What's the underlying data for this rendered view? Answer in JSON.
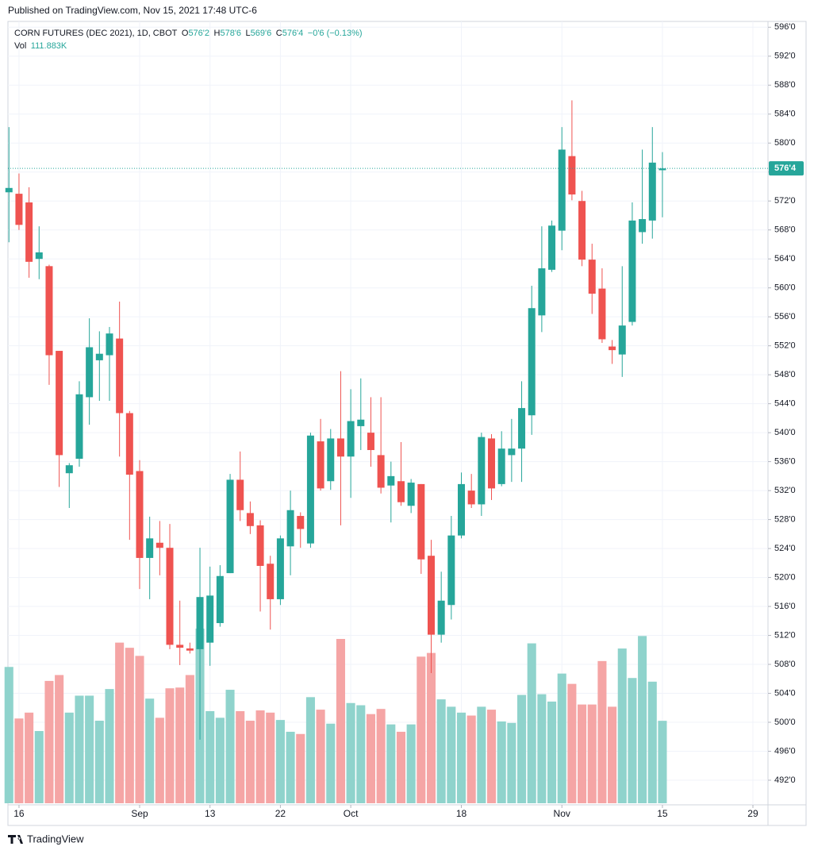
{
  "published": "Published on TradingView.com, Nov 15, 2021 17:48 UTC-6",
  "brand": "TradingView",
  "chart_data": {
    "type": "candlestick",
    "title": "CORN FUTURES (DEC 2021), 1D, CBOT",
    "ohlc_legend": [
      {
        "key": "O",
        "value": "576'2"
      },
      {
        "key": "H",
        "value": "578'6"
      },
      {
        "key": "L",
        "value": "569'6"
      },
      {
        "key": "C",
        "value": "576'4"
      }
    ],
    "change": "−0'6 (−0.13%)",
    "volume_name": "Vol",
    "volume_label": "111.883K",
    "up_color": "#26a69a",
    "down_color": "#ef5350",
    "up_volume_color": "#8fd3cc",
    "down_volume_color": "#f5a5a5",
    "open": [
      573.2,
      573.0,
      571.8,
      564.0,
      563.0,
      551.3,
      534.4,
      536.4,
      544.9,
      550.0,
      550.7,
      553.0,
      542.7,
      534.7,
      522.7,
      524.8,
      524.1,
      510.7,
      510.2,
      510.1,
      511.0,
      513.7,
      520.6,
      533.5,
      528.9,
      527.2,
      521.9,
      517.0,
      524.3,
      528.5,
      524.7,
      538.8,
      533.3,
      539.2,
      536.7,
      540.9,
      540.0,
      536.9,
      532.7,
      533.3,
      529.9,
      532.9,
      523.0,
      512.1,
      516.2,
      525.8,
      532.0,
      530.1,
      539.2,
      532.9,
      536.9,
      537.8,
      542.4,
      556.2,
      562.5,
      567.9,
      578.2,
      572.0,
      563.9,
      559.9,
      551.9,
      550.8,
      555.3,
      567.7,
      569.3,
      576.25
    ],
    "high": [
      582.2,
      575.8,
      573.9,
      568.5,
      563.2,
      551.3,
      535.8,
      547.1,
      555.8,
      554.0,
      554.6,
      558.1,
      543.0,
      536.2,
      528.4,
      527.8,
      527.4,
      516.8,
      511.0,
      524.1,
      521.5,
      521.7,
      534.3,
      537.4,
      530.5,
      527.9,
      523.0,
      525.8,
      532.0,
      529.0,
      540.0,
      541.9,
      540.5,
      548.5,
      546.0,
      547.5,
      544.9,
      544.9,
      536.0,
      538.7,
      533.6,
      532.9,
      525.2,
      520.8,
      528.5,
      534.5,
      534.3,
      540.0,
      539.8,
      540.2,
      541.9,
      547.1,
      560.3,
      568.5,
      569.3,
      582.2,
      585.9,
      573.4,
      566.1,
      562.7,
      552.8,
      563.0,
      571.8,
      579.1,
      582.2,
      578.75
    ],
    "low": [
      566.3,
      568.0,
      561.4,
      561.2,
      546.6,
      532.5,
      529.6,
      535.3,
      541.1,
      544.4,
      544.4,
      536.7,
      525.2,
      518.4,
      517.0,
      520.3,
      510.1,
      507.9,
      509.5,
      497.6,
      507.8,
      513.2,
      520.6,
      527.8,
      526.0,
      515.3,
      512.8,
      516.2,
      520.3,
      524.1,
      524.1,
      532.0,
      532.1,
      527.2,
      531.0,
      537.6,
      535.3,
      531.6,
      527.6,
      529.9,
      528.9,
      520.5,
      506.8,
      511.0,
      514.2,
      525.4,
      529.6,
      528.5,
      530.7,
      532.6,
      533.2,
      533.2,
      539.7,
      553.9,
      562.2,
      565.2,
      572.1,
      563.0,
      556.4,
      552.4,
      549.5,
      547.7,
      554.8,
      566.1,
      566.8,
      569.75
    ],
    "close": [
      573.8,
      568.7,
      563.6,
      564.9,
      550.7,
      536.9,
      535.5,
      545.3,
      551.8,
      550.9,
      553.7,
      542.7,
      534.2,
      522.7,
      525.4,
      524.1,
      510.7,
      510.3,
      509.9,
      517.3,
      517.5,
      520.2,
      533.5,
      529.3,
      527.1,
      521.6,
      517.0,
      525.4,
      529.3,
      526.7,
      539.6,
      532.3,
      539.2,
      536.7,
      541.6,
      541.8,
      537.6,
      532.4,
      534.0,
      530.4,
      533.1,
      522.5,
      512.1,
      516.8,
      525.8,
      532.9,
      530.1,
      539.4,
      532.3,
      537.8,
      537.8,
      543.4,
      557.2,
      562.7,
      568.6,
      579.1,
      572.9,
      563.9,
      559.2,
      552.9,
      551.4,
      554.8,
      569.3,
      569.5,
      577.3,
      576.5
    ],
    "volume": [
      185,
      115,
      123,
      98,
      166,
      174,
      123,
      146,
      146,
      112,
      155,
      218,
      211,
      200,
      142,
      116,
      156,
      157,
      174,
      237,
      125,
      116,
      154,
      125,
      112,
      126,
      123,
      113,
      97,
      94,
      144,
      127,
      108,
      223,
      136,
      133,
      121,
      128,
      107,
      97,
      107,
      199,
      204,
      141,
      131,
      123,
      119,
      131,
      127,
      111,
      109,
      147,
      217,
      148,
      138,
      176,
      162,
      134,
      134,
      193,
      131,
      210,
      170,
      227,
      165,
      111.883
    ],
    "xlim": [
      -0.1,
      75.5
    ],
    "xticks": [
      {
        "value": 1,
        "label": "16"
      },
      {
        "value": 13,
        "label": "Sep"
      },
      {
        "value": 20,
        "label": "13"
      },
      {
        "value": 27,
        "label": "22"
      },
      {
        "value": 34,
        "label": "Oct"
      },
      {
        "value": 45,
        "label": "18"
      },
      {
        "value": 55,
        "label": "Nov"
      },
      {
        "value": 65,
        "label": "15"
      },
      {
        "value": 74,
        "label": "29"
      }
    ],
    "ylim": [
      488.6,
      596.8
    ],
    "yticks": [
      {
        "value": 596,
        "label": "596'0"
      },
      {
        "value": 592,
        "label": "592'0"
      },
      {
        "value": 588,
        "label": "588'0"
      },
      {
        "value": 584,
        "label": "584'0"
      },
      {
        "value": 580,
        "label": "580'0"
      },
      {
        "value": 576,
        "label": "576'0"
      },
      {
        "value": 572,
        "label": "572'0"
      },
      {
        "value": 568,
        "label": "568'0"
      },
      {
        "value": 564,
        "label": "564'0"
      },
      {
        "value": 560,
        "label": "560'0"
      },
      {
        "value": 556,
        "label": "556'0"
      },
      {
        "value": 552,
        "label": "552'0"
      },
      {
        "value": 548,
        "label": "548'0"
      },
      {
        "value": 544,
        "label": "544'0"
      },
      {
        "value": 540,
        "label": "540'0"
      },
      {
        "value": 536,
        "label": "536'0"
      },
      {
        "value": 532,
        "label": "532'0"
      },
      {
        "value": 528,
        "label": "528'0"
      },
      {
        "value": 524,
        "label": "524'0"
      },
      {
        "value": 520,
        "label": "520'0"
      },
      {
        "value": 516,
        "label": "516'0"
      },
      {
        "value": 512,
        "label": "512'0"
      },
      {
        "value": 508,
        "label": "508'0"
      },
      {
        "value": 504,
        "label": "504'0"
      },
      {
        "value": 500,
        "label": "500'0"
      },
      {
        "value": 496,
        "label": "496'0"
      },
      {
        "value": 492,
        "label": "492'0"
      }
    ],
    "grid": true
  }
}
